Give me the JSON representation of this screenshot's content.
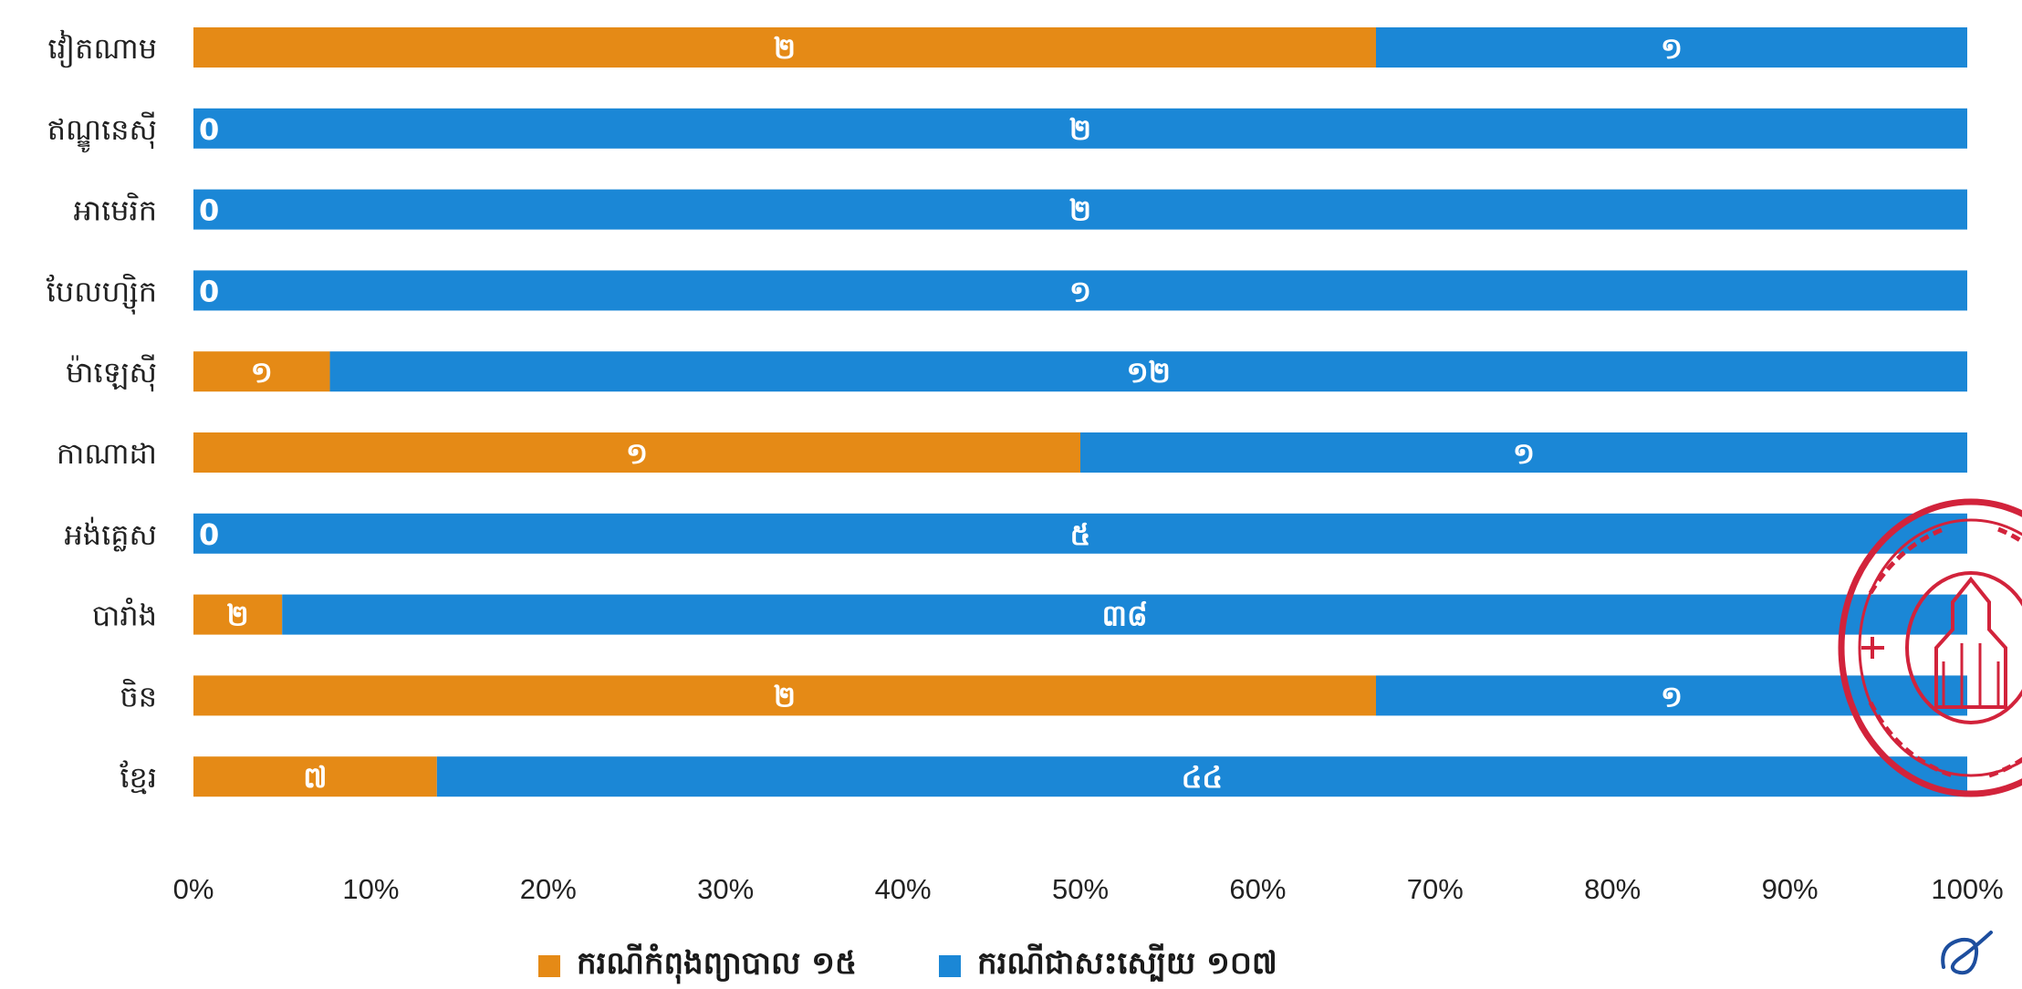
{
  "colors": {
    "treatment": "#e58a16",
    "recovered": "#1b87d6",
    "stamp": "#d2233b",
    "axis_text": "#222222"
  },
  "legend": {
    "treatment_label": "ករណីកំពុងព្យាបាល ១៥",
    "recovered_label": "ករណីជាសះស្បើយ ១០៧"
  },
  "chart_data": {
    "type": "bar",
    "orientation": "horizontal",
    "stacked": "percent",
    "categories": [
      "វៀតណាម",
      "ឥណ្ឌូនេស៊ី",
      "អាមេរិក",
      "បែលហ្ស៊ិក",
      "ម៉ាឡេស៊ី",
      "កាណាដា",
      "អង់គ្លេស",
      "បារាំង",
      "ចិន",
      "ខ្មែរ"
    ],
    "series": [
      {
        "name": "ករណីកំពុងព្យាបាល ១៥",
        "color_key": "treatment",
        "values": [
          2,
          0,
          0,
          0,
          1,
          1,
          0,
          2,
          2,
          7
        ],
        "labels": [
          "២",
          "0",
          "0",
          "0",
          "១",
          "១",
          "0",
          "២",
          "២",
          "៧"
        ]
      },
      {
        "name": "ករណីជាសះស្បើយ ១០៧",
        "color_key": "recovered",
        "values": [
          1,
          2,
          2,
          1,
          12,
          1,
          5,
          38,
          1,
          44
        ],
        "labels": [
          "១",
          "២",
          "២",
          "១",
          "១២",
          "១",
          "៥",
          "៣៨",
          "១",
          "៤៤"
        ]
      }
    ],
    "x_ticks": [
      "0%",
      "10%",
      "20%",
      "30%",
      "40%",
      "50%",
      "60%",
      "70%",
      "80%",
      "90%",
      "100%"
    ],
    "xlim": [
      0,
      100
    ],
    "grid": false,
    "legend_position": "bottom"
  }
}
